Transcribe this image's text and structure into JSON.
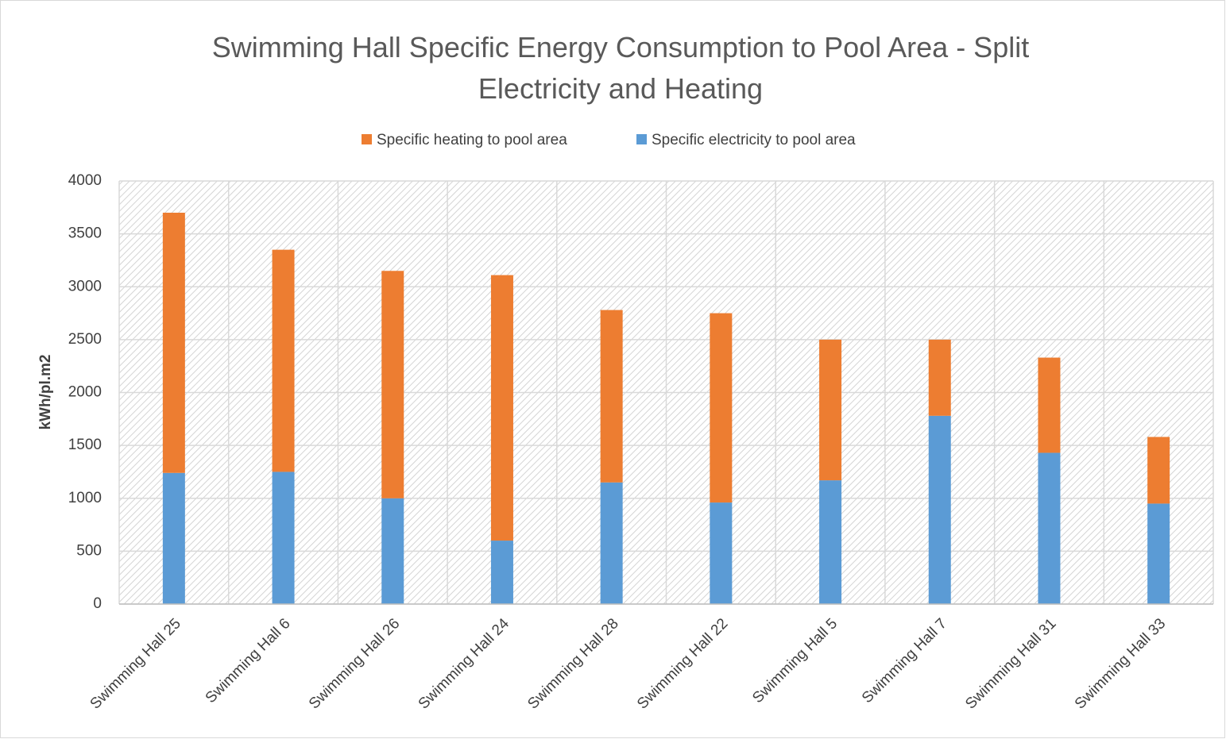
{
  "chart_data": {
    "type": "stacked_bar",
    "title": "Swimming Hall Specific Energy Consumption to Pool Area - Split Electricity and Heating",
    "y_label": "kWh/pl.m2",
    "categories": [
      "Swimming Hall 25",
      "Swimming Hall 6",
      "Swimming Hall 26",
      "Swimming Hall 24",
      "Swimming Hall 28",
      "Swimming Hall 22",
      "Swimming Hall 5",
      "Swimming Hall 7",
      "Swimming Hall 31",
      "Swimming Hall 33"
    ],
    "series": [
      {
        "name": "Specific heating to pool area",
        "color": "#ed7d31",
        "values": [
          2460,
          2100,
          2150,
          2510,
          1630,
          1790,
          1330,
          720,
          900,
          630
        ]
      },
      {
        "name": "Specific electricity to pool area",
        "color": "#5b9bd5",
        "values": [
          1240,
          1250,
          1000,
          600,
          1150,
          960,
          1170,
          1780,
          1430,
          950
        ]
      }
    ],
    "ylim": [
      0,
      4000
    ],
    "yticks": [
      0,
      500,
      1000,
      1500,
      2000,
      2500,
      3000,
      3500,
      4000
    ],
    "grid": true,
    "legend": "top"
  }
}
